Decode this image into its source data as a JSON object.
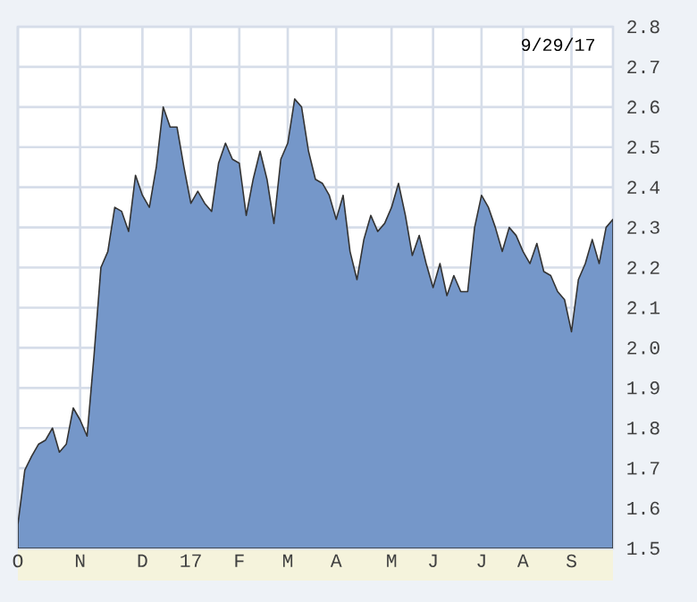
{
  "chart_data": {
    "type": "area",
    "color": "#7597c9",
    "grid": true,
    "annotations": [
      "9/29/17"
    ],
    "ylim": [
      1.5,
      2.8
    ],
    "yticks": [
      1.5,
      1.6,
      1.7,
      1.8,
      1.9,
      {
        "value": 2.0,
        "label": "2.0"
      },
      2.1,
      2.2,
      2.3,
      2.4,
      2.5,
      2.6,
      2.7,
      2.8
    ],
    "categories": [
      "O",
      null,
      null,
      null,
      null,
      null,
      null,
      null,
      null,
      "N",
      null,
      null,
      null,
      null,
      null,
      null,
      null,
      null,
      "D",
      null,
      null,
      null,
      null,
      null,
      null,
      "17",
      null,
      null,
      null,
      null,
      null,
      null,
      "F",
      null,
      null,
      null,
      null,
      null,
      null,
      "M",
      null,
      null,
      null,
      null,
      null,
      null,
      "A",
      null,
      null,
      null,
      null,
      null,
      null,
      null,
      "M",
      null,
      null,
      null,
      null,
      null,
      "J",
      null,
      null,
      null,
      null,
      null,
      null,
      "J",
      null,
      null,
      null,
      null,
      null,
      "A",
      null,
      null,
      null,
      null,
      null,
      null,
      "S",
      null,
      null,
      null,
      null,
      null,
      null
    ],
    "values": [
      1.56,
      1.695,
      1.73,
      1.76,
      1.77,
      1.8,
      1.74,
      1.76,
      1.85,
      1.82,
      1.78,
      1.98,
      2.2,
      2.24,
      2.35,
      2.34,
      2.29,
      2.43,
      2.38,
      2.35,
      2.45,
      2.6,
      2.55,
      2.55,
      2.45,
      2.36,
      2.39,
      2.36,
      2.34,
      2.46,
      2.51,
      2.47,
      2.46,
      2.33,
      2.42,
      2.49,
      2.42,
      2.31,
      2.47,
      2.51,
      2.62,
      2.6,
      2.49,
      2.42,
      2.41,
      2.38,
      2.32,
      2.38,
      2.24,
      2.17,
      2.27,
      2.33,
      2.29,
      2.31,
      2.35,
      2.41,
      2.33,
      2.23,
      2.28,
      2.21,
      2.15,
      2.21,
      2.13,
      2.18,
      2.14,
      2.14,
      2.3,
      2.38,
      2.35,
      2.3,
      2.24,
      2.3,
      2.28,
      2.24,
      2.21,
      2.26,
      2.19,
      2.18,
      2.14,
      2.12,
      2.04,
      2.17,
      2.21,
      2.27,
      2.21,
      2.3,
      2.32
    ]
  }
}
